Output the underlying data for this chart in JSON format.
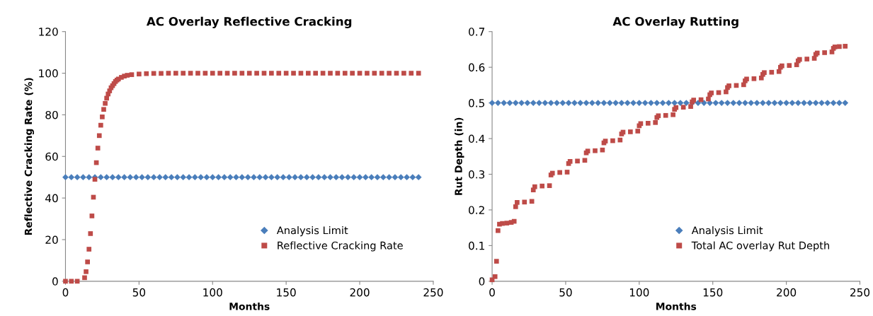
{
  "chart_data": [
    {
      "type": "scatter",
      "title": "AC Overlay Reflective Cracking",
      "xlabel": "Months",
      "ylabel": "Reflective Cracking Rate (%)",
      "xlim": [
        0,
        250
      ],
      "xticks": [
        0,
        50,
        100,
        150,
        200,
        250
      ],
      "ylim": [
        0,
        120
      ],
      "yticks": [
        0,
        20,
        40,
        60,
        80,
        100,
        120
      ],
      "grid": false,
      "legend": "bottom right",
      "series": [
        {
          "name": "Analysis Limit",
          "color": "#4a7ebb",
          "marker": "diamond",
          "x": [
            0,
            4,
            8,
            12,
            16,
            20,
            24,
            28,
            32,
            36,
            40,
            44,
            48,
            52,
            56,
            60,
            64,
            68,
            72,
            76,
            80,
            84,
            88,
            92,
            96,
            100,
            104,
            108,
            112,
            116,
            120,
            124,
            128,
            132,
            136,
            140,
            144,
            148,
            152,
            156,
            160,
            164,
            168,
            172,
            176,
            180,
            184,
            188,
            192,
            196,
            200,
            204,
            208,
            212,
            216,
            220,
            224,
            228,
            232,
            236,
            240
          ],
          "values": [
            50,
            50,
            50,
            50,
            50,
            50,
            50,
            50,
            50,
            50,
            50,
            50,
            50,
            50,
            50,
            50,
            50,
            50,
            50,
            50,
            50,
            50,
            50,
            50,
            50,
            50,
            50,
            50,
            50,
            50,
            50,
            50,
            50,
            50,
            50,
            50,
            50,
            50,
            50,
            50,
            50,
            50,
            50,
            50,
            50,
            50,
            50,
            50,
            50,
            50,
            50,
            50,
            50,
            50,
            50,
            50,
            50,
            50,
            50,
            50,
            50
          ]
        },
        {
          "name": "Reflective Cracking Rate",
          "color": "#be4b48",
          "marker": "square",
          "x": [
            0,
            4,
            8,
            13,
            14,
            15,
            16,
            17,
            18,
            19,
            20,
            21,
            22,
            23,
            24,
            25,
            26,
            27,
            28,
            29,
            30,
            31,
            32,
            33,
            34,
            35,
            36,
            38,
            40,
            42,
            45,
            50,
            55,
            60,
            65,
            70,
            75,
            80,
            85,
            90,
            95,
            100,
            105,
            110,
            115,
            120,
            125,
            130,
            135,
            140,
            145,
            150,
            155,
            160,
            165,
            170,
            175,
            180,
            185,
            190,
            195,
            200,
            205,
            210,
            215,
            220,
            225,
            230,
            235,
            240
          ],
          "values": [
            0,
            0,
            0,
            1.7,
            4.6,
            9.3,
            15.4,
            22.9,
            31.4,
            40.4,
            49,
            57,
            64,
            70,
            75,
            79,
            82.6,
            85.5,
            88,
            90,
            91.5,
            93,
            94,
            95,
            96,
            96.7,
            97.2,
            98,
            98.6,
            99,
            99.3,
            99.6,
            99.8,
            99.9,
            99.9,
            100,
            100,
            100,
            100,
            100,
            100,
            100,
            100,
            100,
            100,
            100,
            100,
            100,
            100,
            100,
            100,
            100,
            100,
            100,
            100,
            100,
            100,
            100,
            100,
            100,
            100,
            100,
            100,
            100,
            100,
            100,
            100,
            100,
            100,
            100
          ]
        }
      ]
    },
    {
      "type": "scatter",
      "title": "AC Overlay Rutting",
      "xlabel": "Months",
      "ylabel": "Rut Depth (in)",
      "xlim": [
        0,
        250
      ],
      "xticks": [
        0,
        50,
        100,
        150,
        200,
        250
      ],
      "ylim": [
        0,
        0.7
      ],
      "yticks": [
        0,
        0.1,
        0.2,
        0.3,
        0.4,
        0.5,
        0.6,
        0.7
      ],
      "grid": false,
      "legend": "bottom right",
      "series": [
        {
          "name": "Analysis Limit",
          "color": "#4a7ebb",
          "marker": "diamond",
          "x": [
            0,
            4,
            8,
            12,
            16,
            20,
            24,
            28,
            32,
            36,
            40,
            44,
            48,
            52,
            56,
            60,
            64,
            68,
            72,
            76,
            80,
            84,
            88,
            92,
            96,
            100,
            104,
            108,
            112,
            116,
            120,
            124,
            128,
            132,
            136,
            140,
            144,
            148,
            152,
            156,
            160,
            164,
            168,
            172,
            176,
            180,
            184,
            188,
            192,
            196,
            200,
            204,
            208,
            212,
            216,
            220,
            224,
            228,
            232,
            236,
            240
          ],
          "values": [
            0.5,
            0.5,
            0.5,
            0.5,
            0.5,
            0.5,
            0.5,
            0.5,
            0.5,
            0.5,
            0.5,
            0.5,
            0.5,
            0.5,
            0.5,
            0.5,
            0.5,
            0.5,
            0.5,
            0.5,
            0.5,
            0.5,
            0.5,
            0.5,
            0.5,
            0.5,
            0.5,
            0.5,
            0.5,
            0.5,
            0.5,
            0.5,
            0.5,
            0.5,
            0.5,
            0.5,
            0.5,
            0.5,
            0.5,
            0.5,
            0.5,
            0.5,
            0.5,
            0.5,
            0.5,
            0.5,
            0.5,
            0.5,
            0.5,
            0.5,
            0.5,
            0.5,
            0.5,
            0.5,
            0.5,
            0.5,
            0.5,
            0.5,
            0.5,
            0.5,
            0.5
          ]
        },
        {
          "name": "Total AC overlay Rut Depth",
          "color": "#be4b48",
          "marker": "square",
          "x": [
            0,
            2,
            3,
            4,
            5,
            7,
            10,
            13,
            15,
            16,
            17,
            22,
            27,
            28,
            29,
            34,
            39,
            40,
            41,
            46,
            51,
            52,
            53,
            58,
            63,
            64,
            65,
            70,
            75,
            76,
            77,
            82,
            87,
            88,
            89,
            94,
            99,
            100,
            101,
            106,
            111,
            112,
            113,
            118,
            123,
            124,
            125,
            130,
            135,
            136,
            137,
            142,
            147,
            148,
            149,
            154,
            159,
            160,
            161,
            166,
            171,
            172,
            173,
            178,
            183,
            184,
            185,
            190,
            195,
            196,
            197,
            202,
            207,
            208,
            209,
            214,
            219,
            220,
            221,
            226,
            231,
            232,
            233,
            236,
            240
          ],
          "values": [
            0.004,
            0.013,
            0.056,
            0.142,
            0.16,
            0.162,
            0.163,
            0.165,
            0.168,
            0.209,
            0.221,
            0.222,
            0.224,
            0.256,
            0.265,
            0.267,
            0.268,
            0.298,
            0.303,
            0.305,
            0.306,
            0.33,
            0.336,
            0.337,
            0.339,
            0.36,
            0.365,
            0.366,
            0.368,
            0.388,
            0.393,
            0.394,
            0.396,
            0.413,
            0.418,
            0.419,
            0.421,
            0.436,
            0.442,
            0.443,
            0.445,
            0.459,
            0.464,
            0.465,
            0.467,
            0.482,
            0.487,
            0.488,
            0.49,
            0.503,
            0.508,
            0.509,
            0.511,
            0.523,
            0.528,
            0.529,
            0.531,
            0.543,
            0.548,
            0.549,
            0.551,
            0.562,
            0.567,
            0.568,
            0.57,
            0.58,
            0.585,
            0.586,
            0.588,
            0.6,
            0.604,
            0.605,
            0.607,
            0.618,
            0.622,
            0.623,
            0.625,
            0.636,
            0.64,
            0.641,
            0.643,
            0.653,
            0.657,
            0.658,
            0.659
          ]
        }
      ]
    }
  ]
}
